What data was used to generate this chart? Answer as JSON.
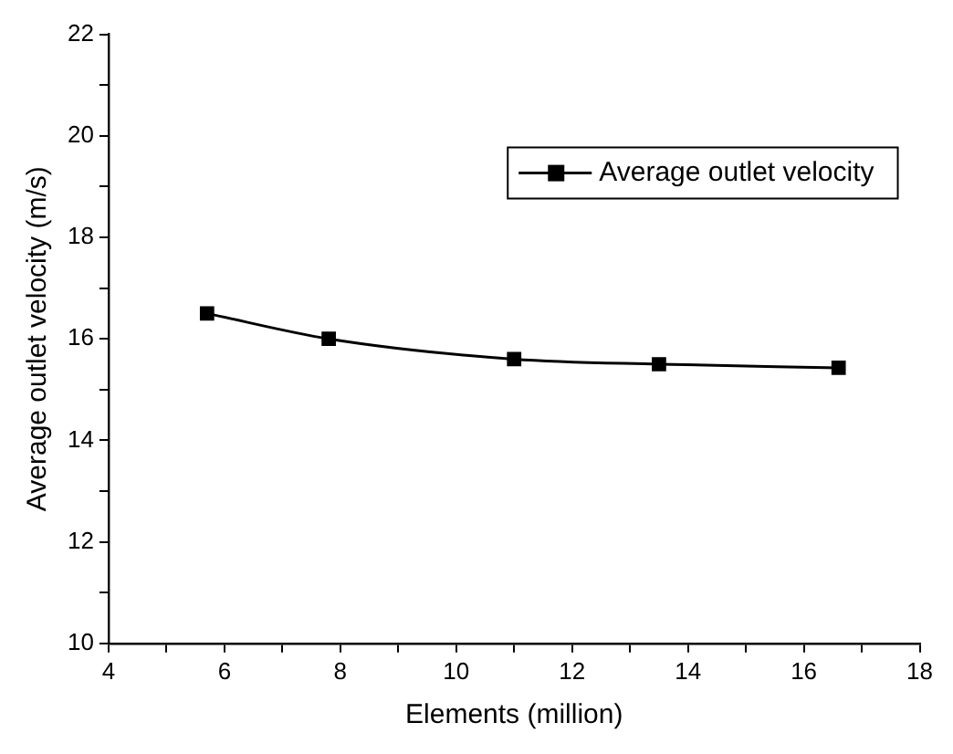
{
  "chart_data": {
    "type": "line",
    "xlabel": "Elements (million)",
    "ylabel": "Average outlet velocity (m/s)",
    "x": [
      5.7,
      7.8,
      11,
      13.5,
      16.6
    ],
    "series": [
      {
        "name": "Average outlet velocity",
        "color": "#000000",
        "values": [
          16.5,
          16.0,
          15.6,
          15.5,
          15.43
        ]
      }
    ],
    "xlim": [
      4,
      18
    ],
    "xticks": [
      4,
      {
        "value": 5,
        "label": null
      },
      6,
      {
        "value": 7,
        "label": null
      },
      8,
      {
        "value": 9,
        "label": null
      },
      10,
      {
        "value": 11,
        "label": null
      },
      12,
      {
        "value": 13,
        "label": null
      },
      14,
      {
        "value": 15,
        "label": null
      },
      16,
      {
        "value": 17,
        "label": null
      },
      18
    ],
    "ylim": [
      10,
      22
    ],
    "yticks": [
      10,
      {
        "value": 11,
        "label": null
      },
      12,
      {
        "value": 13,
        "label": null
      },
      14,
      {
        "value": 15,
        "label": null
      },
      16,
      {
        "value": 17,
        "label": null
      },
      18,
      {
        "value": 19,
        "label": null
      },
      20,
      {
        "value": 21,
        "label": null
      },
      22
    ],
    "marker": "square",
    "line_style": "solid",
    "legend": "top right",
    "grid": false
  }
}
